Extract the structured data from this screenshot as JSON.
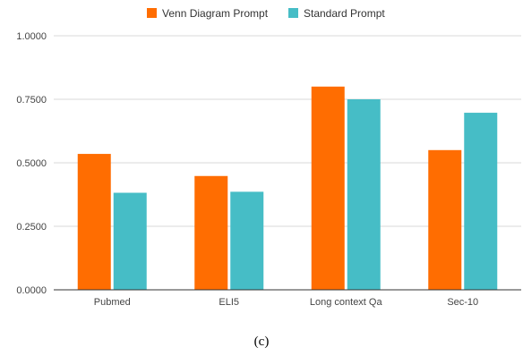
{
  "chart_data": {
    "type": "bar",
    "categories": [
      "Pubmed",
      "ELI5",
      "Long context Qa",
      "Sec-10"
    ],
    "series": [
      {
        "name": "Venn Diagram Prompt",
        "values": [
          0.535,
          0.448,
          0.8,
          0.55
        ],
        "color": "#ff6d01"
      },
      {
        "name": "Standard Prompt",
        "values": [
          0.382,
          0.386,
          0.75,
          0.697
        ],
        "color": "#46bdc6"
      }
    ],
    "yticks": [
      "0.0000",
      "0.2500",
      "0.5000",
      "0.7500",
      "1.0000"
    ],
    "ylim": [
      0,
      1
    ],
    "grid": true,
    "legend": "top-center"
  },
  "caption": "(c)"
}
